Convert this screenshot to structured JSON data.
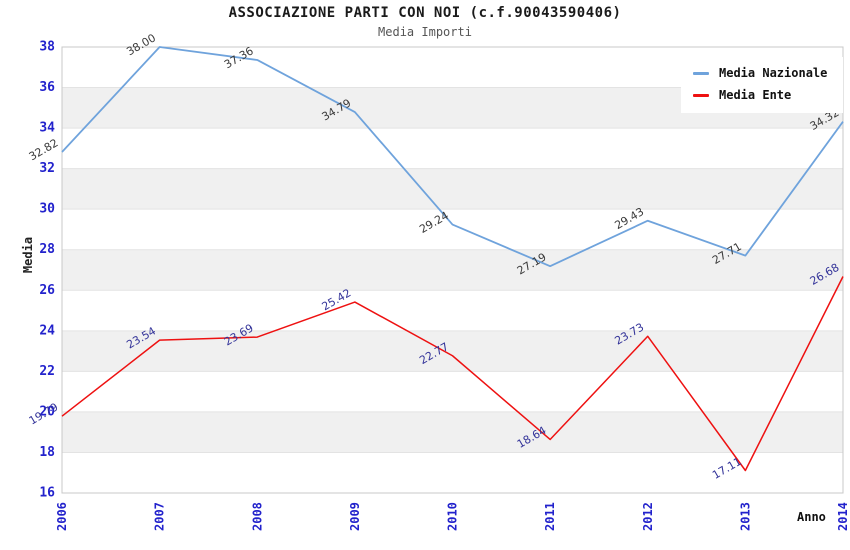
{
  "header": {
    "title": "ASSOCIAZIONE PARTI CON NOI (c.f.90043590406)",
    "subtitle": "Media Importi"
  },
  "chart_data": {
    "type": "line",
    "title": "ASSOCIAZIONE PARTI CON NOI (c.f.90043590406)",
    "subtitle": "Media Importi",
    "xlabel": "Anno",
    "ylabel": "Media",
    "x": [
      2006,
      2007,
      2008,
      2009,
      2010,
      2011,
      2012,
      2013,
      2014
    ],
    "series": [
      {
        "name": "Media Nazionale",
        "color": "#6fa3dc",
        "label_color": "#3a3a3a",
        "values": [
          32.82,
          38.0,
          37.36,
          34.79,
          29.24,
          27.19,
          29.43,
          27.71,
          34.32
        ]
      },
      {
        "name": "Media Ente",
        "color": "#ee1111",
        "label_color": "#333399",
        "values": [
          19.79,
          23.54,
          23.69,
          25.42,
          22.77,
          18.64,
          23.73,
          17.11,
          26.68
        ]
      }
    ],
    "ylim": [
      16,
      38
    ],
    "yticks": [
      16,
      18,
      20,
      22,
      24,
      26,
      28,
      30,
      32,
      34,
      36,
      38
    ],
    "grid": true,
    "legend_position": "top-right",
    "colors": {
      "tick_label": "#2222cc",
      "grid_line": "#e3e3e3",
      "band_fill": "#f0f0f0",
      "plot_border": "#c8c8c8"
    }
  }
}
